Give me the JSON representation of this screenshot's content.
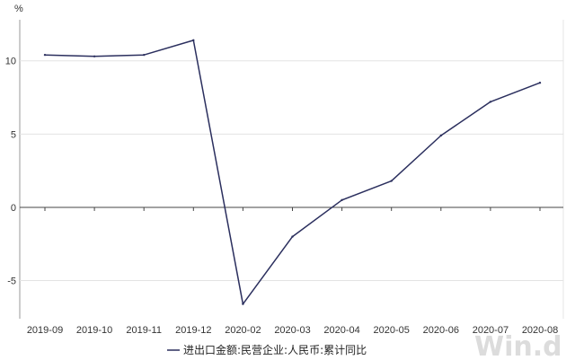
{
  "chart_data": {
    "type": "line",
    "title": "",
    "xlabel": "",
    "ylabel": "%",
    "categories": [
      "2019-09",
      "2019-10",
      "2019-11",
      "2019-12",
      "2020-02",
      "2020-03",
      "2020-04",
      "2020-05",
      "2020-06",
      "2020-07",
      "2020-08"
    ],
    "series": [
      {
        "name": "进出口金额:民营企业:人民币:累计同比",
        "color": "#2b2f5e",
        "values": [
          10.4,
          10.3,
          10.4,
          11.4,
          -6.6,
          -2.0,
          0.5,
          1.8,
          4.9,
          7.2,
          8.5
        ]
      }
    ],
    "ylim": [
      -7.6,
      12.8
    ],
    "yticks": [
      -5,
      0,
      5,
      10
    ],
    "grid": true,
    "legend": "bottom-center",
    "watermark": "Win.d"
  }
}
